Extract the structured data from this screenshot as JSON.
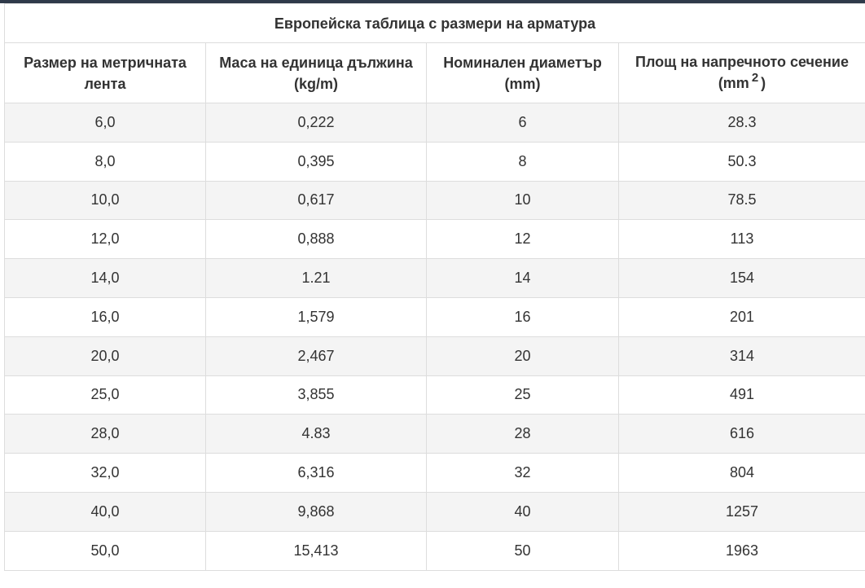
{
  "table": {
    "caption": "Европейска таблица с размери на арматура",
    "headers": {
      "size": "Размер на метричната лента",
      "mass": "Маса на единица дължина (kg/m)",
      "diameter": "Номинален диаметър (mm)",
      "area_prefix": "Площ на напречното сечение (mm",
      "area_sup": "2",
      "area_suffix": ")"
    },
    "rows": [
      [
        "6,0",
        "0,222",
        "6",
        "28.3"
      ],
      [
        "8,0",
        "0,395",
        "8",
        "50.3"
      ],
      [
        "10,0",
        "0,617",
        "10",
        "78.5"
      ],
      [
        "12,0",
        "0,888",
        "12",
        "113"
      ],
      [
        "14,0",
        "1.21",
        "14",
        "154"
      ],
      [
        "16,0",
        "1,579",
        "16",
        "201"
      ],
      [
        "20,0",
        "2,467",
        "20",
        "314"
      ],
      [
        "25,0",
        "3,855",
        "25",
        "491"
      ],
      [
        "28,0",
        "4.83",
        "28",
        "616"
      ],
      [
        "32,0",
        "6,316",
        "32",
        "804"
      ],
      [
        "40,0",
        "9,868",
        "40",
        "1257"
      ],
      [
        "50,0",
        "15,413",
        "50",
        "1963"
      ]
    ]
  }
}
